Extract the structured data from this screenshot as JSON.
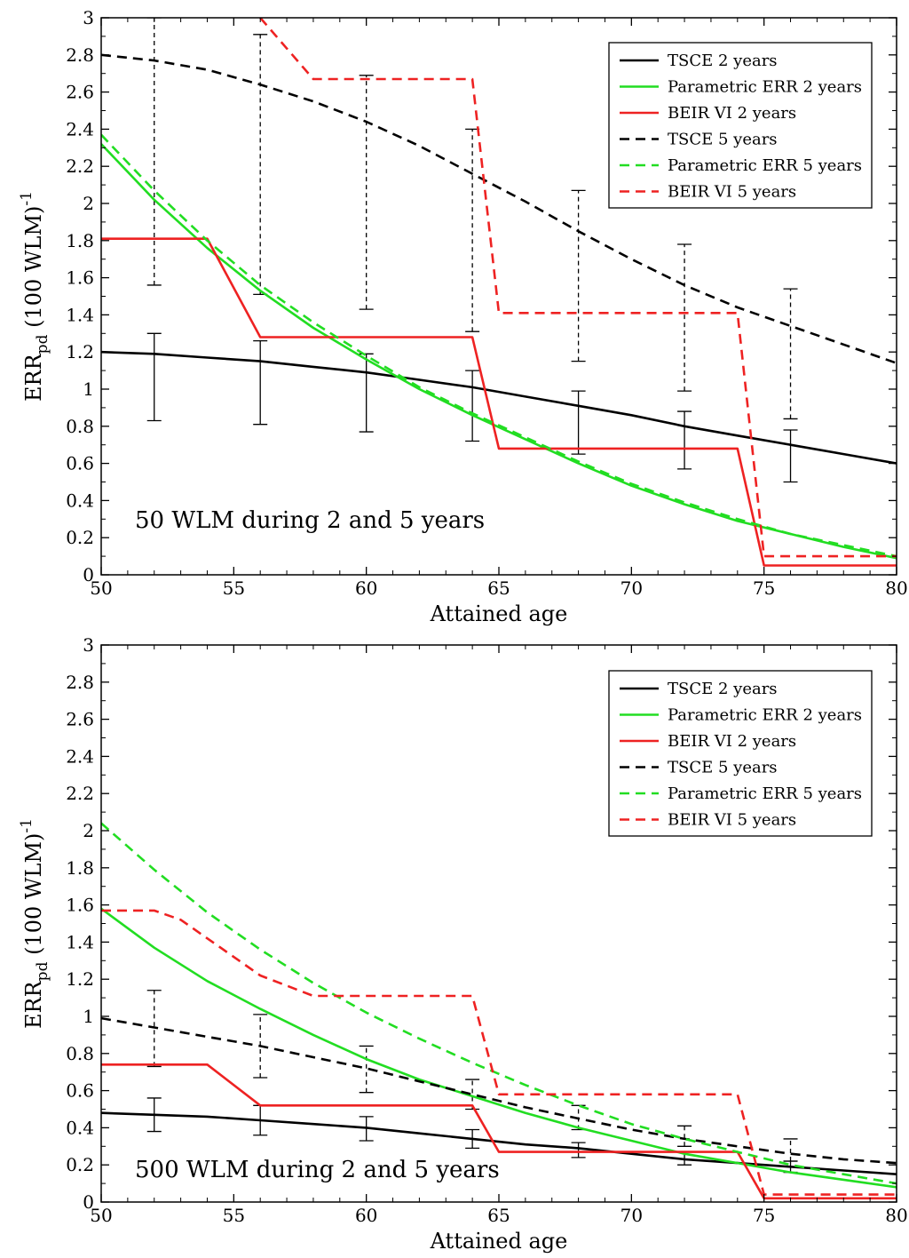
{
  "chart_data": [
    {
      "type": "line",
      "panel": "top",
      "annotation": "50 WLM during 2 and 5 years",
      "xlabel": "Attained age",
      "ylabel": "ERR",
      "ylabel_subscript": "pd",
      "ylabel_suffix": " (100 WLM)",
      "ylabel_superscript": "-1",
      "xlim": [
        50,
        80
      ],
      "ylim": [
        0,
        3
      ],
      "xticks": [
        50,
        55,
        60,
        65,
        70,
        75,
        80
      ],
      "xtick_labels": [
        "50",
        "55",
        "60",
        "65",
        "70",
        "75",
        "80"
      ],
      "yticks": [
        0,
        0.2,
        0.4,
        0.6,
        0.8,
        1,
        1.2,
        1.4,
        1.6,
        1.8,
        2,
        2.2,
        2.4,
        2.6,
        2.8,
        3
      ],
      "ytick_labels": [
        "0",
        "0.2",
        "0.4",
        "0.6",
        "0.8",
        "1",
        "1.2",
        "1.4",
        "1.6",
        "1.8",
        "2",
        "2.2",
        "2.4",
        "2.6",
        "2.8",
        "3"
      ],
      "grid": false,
      "legend_position": "top-right",
      "series": [
        {
          "name": "TSCE 2 years",
          "color": "#000000",
          "dash": false,
          "x": [
            50,
            52,
            54,
            56,
            58,
            60,
            62,
            64,
            66,
            68,
            70,
            72,
            74,
            76,
            78,
            80
          ],
          "y": [
            1.2,
            1.19,
            1.17,
            1.15,
            1.12,
            1.09,
            1.05,
            1.01,
            0.96,
            0.91,
            0.86,
            0.8,
            0.75,
            0.7,
            0.65,
            0.6
          ]
        },
        {
          "name": "Parametric ERR 2 years",
          "color": "#22dd22",
          "dash": false,
          "x": [
            50,
            52,
            54,
            56,
            58,
            60,
            62,
            64,
            66,
            68,
            70,
            72,
            74,
            76,
            78,
            80
          ],
          "y": [
            2.32,
            2.02,
            1.76,
            1.53,
            1.33,
            1.16,
            1.0,
            0.86,
            0.73,
            0.6,
            0.48,
            0.38,
            0.29,
            0.22,
            0.15,
            0.09
          ]
        },
        {
          "name": "BEIR VI 2 years",
          "color": "#ee2222",
          "dash": false,
          "x": [
            50,
            54,
            56,
            64,
            65,
            74,
            75,
            80
          ],
          "y": [
            1.81,
            1.81,
            1.28,
            1.28,
            0.68,
            0.68,
            0.05,
            0.05
          ]
        },
        {
          "name": "TSCE 5 years",
          "color": "#000000",
          "dash": true,
          "x": [
            50,
            52,
            54,
            56,
            58,
            60,
            62,
            64,
            66,
            68,
            70,
            72,
            74,
            76,
            78,
            80
          ],
          "y": [
            2.8,
            2.77,
            2.72,
            2.64,
            2.55,
            2.44,
            2.31,
            2.16,
            2.01,
            1.85,
            1.7,
            1.56,
            1.44,
            1.34,
            1.24,
            1.14
          ]
        },
        {
          "name": "Parametric ERR 5 years",
          "color": "#22dd22",
          "dash": true,
          "x": [
            50,
            52,
            54,
            56,
            58,
            60,
            62,
            64,
            66,
            68,
            70,
            72,
            74,
            76,
            78,
            80
          ],
          "y": [
            2.37,
            2.07,
            1.8,
            1.56,
            1.36,
            1.18,
            1.01,
            0.87,
            0.74,
            0.61,
            0.49,
            0.39,
            0.3,
            0.22,
            0.16,
            0.1
          ]
        },
        {
          "name": "BEIR VI 5 years",
          "color": "#ee2222",
          "dash": true,
          "x": [
            56,
            58,
            64,
            65,
            74,
            75,
            80
          ],
          "y": [
            3.0,
            2.67,
            2.67,
            1.41,
            1.41,
            0.1,
            0.1
          ]
        }
      ],
      "error_bars": [
        {
          "style": "solid",
          "x": [
            52,
            56,
            60,
            64,
            68,
            72,
            76
          ],
          "low": [
            0.83,
            0.81,
            0.77,
            0.72,
            0.65,
            0.57,
            0.5
          ],
          "high": [
            1.3,
            1.26,
            1.19,
            1.1,
            0.99,
            0.88,
            0.78
          ]
        },
        {
          "style": "dashed",
          "x": [
            52,
            56,
            60,
            64,
            68,
            72,
            76
          ],
          "low": [
            1.56,
            1.51,
            1.43,
            1.31,
            1.15,
            0.99,
            0.84
          ],
          "high": [
            3.0,
            2.91,
            2.69,
            2.4,
            2.07,
            1.78,
            1.54
          ]
        }
      ]
    },
    {
      "type": "line",
      "panel": "bottom",
      "annotation": "500 WLM during 2 and 5 years",
      "xlabel": "Attained age",
      "ylabel": "ERR",
      "ylabel_subscript": "pd",
      "ylabel_suffix": " (100 WLM)",
      "ylabel_superscript": "-1",
      "xlim": [
        50,
        80
      ],
      "ylim": [
        0,
        3
      ],
      "xticks": [
        50,
        55,
        60,
        65,
        70,
        75,
        80
      ],
      "xtick_labels": [
        "50",
        "55",
        "60",
        "65",
        "70",
        "75",
        "80"
      ],
      "yticks": [
        0,
        0.2,
        0.4,
        0.6,
        0.8,
        1,
        1.2,
        1.4,
        1.6,
        1.8,
        2,
        2.2,
        2.4,
        2.6,
        2.8,
        3
      ],
      "ytick_labels": [
        "0",
        "0.2",
        "0.4",
        "0.6",
        "0.8",
        "1",
        "1.2",
        "1.4",
        "1.6",
        "1.8",
        "2",
        "2.2",
        "2.4",
        "2.6",
        "2.8",
        "3"
      ],
      "grid": false,
      "legend_position": "top-right",
      "series": [
        {
          "name": "TSCE 2 years",
          "color": "#000000",
          "dash": false,
          "x": [
            50,
            52,
            54,
            56,
            58,
            60,
            62,
            64,
            66,
            68,
            70,
            72,
            74,
            76,
            78,
            80
          ],
          "y": [
            0.48,
            0.47,
            0.46,
            0.44,
            0.42,
            0.4,
            0.37,
            0.34,
            0.31,
            0.29,
            0.26,
            0.23,
            0.21,
            0.19,
            0.17,
            0.15
          ]
        },
        {
          "name": "Parametric ERR 2 years",
          "color": "#22dd22",
          "dash": false,
          "x": [
            50,
            52,
            54,
            56,
            58,
            60,
            62,
            64,
            66,
            68,
            70,
            72,
            74,
            76,
            78,
            80
          ],
          "y": [
            1.58,
            1.37,
            1.19,
            1.04,
            0.9,
            0.77,
            0.66,
            0.57,
            0.48,
            0.4,
            0.33,
            0.26,
            0.21,
            0.16,
            0.12,
            0.08
          ]
        },
        {
          "name": "BEIR VI 2 years",
          "color": "#ee2222",
          "dash": false,
          "x": [
            50,
            54,
            56,
            64,
            65,
            74,
            75,
            80
          ],
          "y": [
            0.74,
            0.74,
            0.52,
            0.52,
            0.27,
            0.27,
            0.02,
            0.02
          ]
        },
        {
          "name": "TSCE 5 years",
          "color": "#000000",
          "dash": true,
          "x": [
            50,
            52,
            54,
            56,
            58,
            60,
            62,
            64,
            66,
            68,
            70,
            72,
            74,
            76,
            78,
            80
          ],
          "y": [
            0.99,
            0.94,
            0.89,
            0.84,
            0.78,
            0.72,
            0.65,
            0.58,
            0.51,
            0.45,
            0.39,
            0.34,
            0.3,
            0.26,
            0.23,
            0.21
          ]
        },
        {
          "name": "Parametric ERR 5 years",
          "color": "#22dd22",
          "dash": true,
          "x": [
            50,
            52,
            54,
            56,
            58,
            60,
            62,
            64,
            66,
            68,
            70,
            72,
            74,
            76,
            78,
            80
          ],
          "y": [
            2.04,
            1.79,
            1.56,
            1.36,
            1.18,
            1.02,
            0.88,
            0.75,
            0.63,
            0.52,
            0.42,
            0.34,
            0.27,
            0.2,
            0.15,
            0.1
          ]
        },
        {
          "name": "BEIR VI 5 years",
          "color": "#ee2222",
          "dash": true,
          "x": [
            50,
            52,
            53,
            56,
            58,
            64,
            65,
            74,
            75,
            80
          ],
          "y": [
            1.57,
            1.57,
            1.52,
            1.22,
            1.11,
            1.11,
            0.58,
            0.58,
            0.04,
            0.04
          ]
        }
      ],
      "error_bars": [
        {
          "style": "solid",
          "x": [
            52,
            56,
            60,
            64,
            68,
            72,
            76
          ],
          "low": [
            0.38,
            0.36,
            0.33,
            0.29,
            0.24,
            0.2,
            0.16
          ],
          "high": [
            0.56,
            0.52,
            0.46,
            0.39,
            0.32,
            0.27,
            0.22
          ]
        },
        {
          "style": "dashed",
          "x": [
            52,
            56,
            60,
            64,
            68,
            72,
            76
          ],
          "low": [
            0.73,
            0.67,
            0.59,
            0.5,
            0.39,
            0.3,
            0.22
          ],
          "high": [
            1.14,
            1.01,
            0.84,
            0.66,
            0.52,
            0.41,
            0.34
          ]
        }
      ]
    }
  ]
}
